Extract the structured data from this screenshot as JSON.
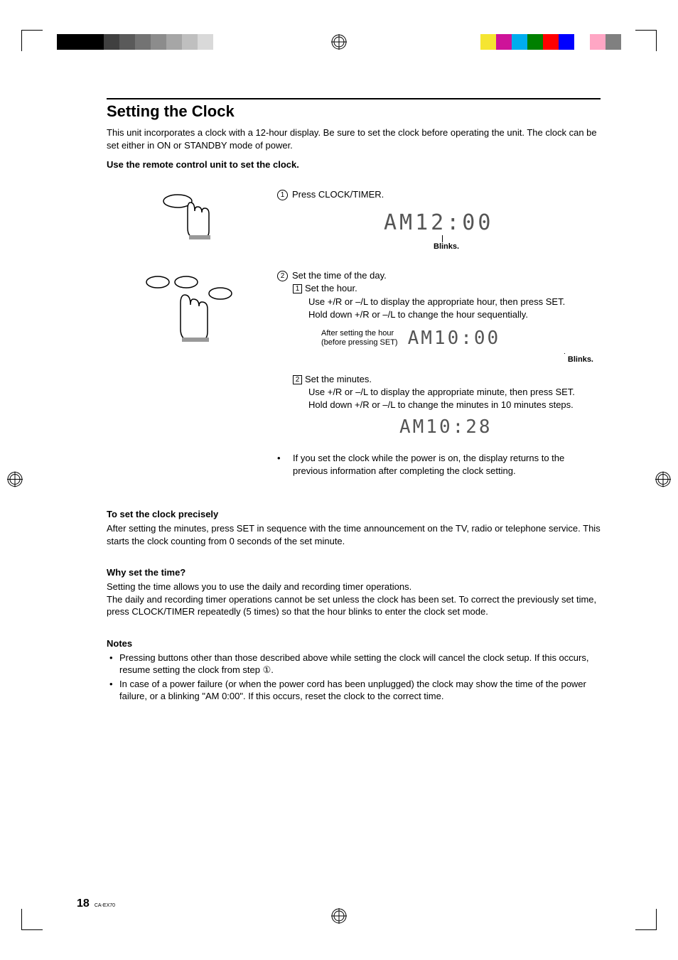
{
  "title": "Setting the Clock",
  "intro": "This unit incorporates a clock with a 12-hour display. Be sure to set the clock before operating the unit. The clock can be set either in ON or STANDBY mode of power.",
  "instruction_bold": "Use the remote control unit to set the clock.",
  "step1": {
    "num": "1",
    "text": "Press CLOCK/TIMER.",
    "display": "AM12:00",
    "blinks": "Blinks."
  },
  "step2": {
    "num": "2",
    "text": "Set the time of the day.",
    "sub1": {
      "num": "1",
      "title": "Set the hour.",
      "line1": "Use +/R or –/L to display the appropriate hour, then press SET.",
      "line2": "Hold down +/R or –/L to change the hour sequentially.",
      "after_label1": "After setting the hour",
      "after_label2": "(before pressing SET)",
      "display": "AM10:00",
      "blinks": "Blinks."
    },
    "sub2": {
      "num": "2",
      "title": "Set the minutes.",
      "line1": "Use +/R or –/L to display the appropriate minute, then press SET.",
      "line2": "Hold down +/R or –/L to change the minutes in 10 minutes steps.",
      "display": "AM10:28"
    },
    "note": "If you set the clock while the power is on, the display returns to the previous information after completing the clock setting."
  },
  "precise": {
    "heading": "To set the clock precisely",
    "body": "After setting the minutes, press SET in sequence with the time announcement on the TV, radio or telephone service. This starts the clock counting from 0 seconds of the set minute."
  },
  "why": {
    "heading": "Why set the time?",
    "line1": "Setting the time allows you to use the daily and recording timer operations.",
    "line2": "The daily and recording timer operations cannot be set unless the clock has been set. To correct the previously set time, press CLOCK/TIMER repeatedly (5 times) so that the hour blinks to enter the clock set mode."
  },
  "notes": {
    "heading": "Notes",
    "items": [
      "Pressing buttons other than those described above while setting the clock will cancel the clock setup. If this occurs, resume setting the clock from step ①.",
      "In case of a power failure (or when the power cord has been unplugged) the clock may show the time of the power failure, or a blinking \"AM 0:00\". If this occurs, reset the clock to the correct time."
    ]
  },
  "page_number": "18",
  "page_model": "CA-EX70",
  "crop_colors_left": [
    "#000000",
    "#000000",
    "#000000",
    "#404040",
    "#5a5a5a",
    "#737373",
    "#8c8c8c",
    "#a6a6a6",
    "#bfbfbf",
    "#d9d9d9",
    "#ffffff"
  ],
  "crop_colors_right": [
    "#f5e531",
    "#ce1399",
    "#00adee",
    "#008000",
    "#ff0000",
    "#0000ff",
    "#ffffff",
    "#ffa6c4",
    "#808080"
  ]
}
